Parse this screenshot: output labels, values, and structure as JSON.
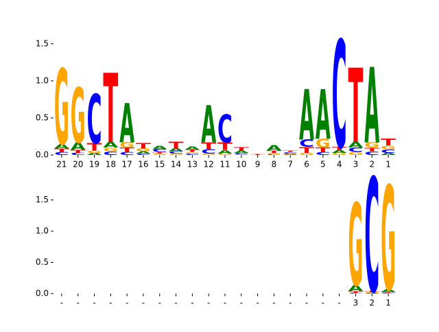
{
  "chart_data": [
    {
      "type": "logo",
      "categories": [
        "21",
        "20",
        "19",
        "18",
        "17",
        "16",
        "15",
        "14",
        "13",
        "12",
        "11",
        "10",
        "9",
        "8",
        "7",
        "6",
        "5",
        "4",
        "3",
        "2",
        "1"
      ],
      "series": [
        {
          "name": "A",
          "color": "#008000",
          "values": [
            0.06,
            0.1,
            0.03,
            0.08,
            0.53,
            0.03,
            0.05,
            0.04,
            0.05,
            0.5,
            0.05,
            0.03,
            0,
            0.07,
            0.01,
            0.68,
            0.67,
            0.04,
            0.08,
            1.02,
            0.03
          ]
        },
        {
          "name": "C",
          "color": "#0000ff",
          "values": [
            0.04,
            0.03,
            0.66,
            0.05,
            0.04,
            0.02,
            0.04,
            0.03,
            0.02,
            0.06,
            0.38,
            0.02,
            0,
            0.01,
            0.02,
            0.1,
            0.04,
            1.45,
            0.06,
            0.05,
            0.05
          ]
        },
        {
          "name": "G",
          "color": "#ffa500",
          "values": [
            1.02,
            0.74,
            0.03,
            0.05,
            0.07,
            0.04,
            0.02,
            0.02,
            0.02,
            0.02,
            0.02,
            0.01,
            0,
            0.02,
            0.01,
            0.03,
            0.12,
            0.03,
            0.04,
            0.07,
            0.05
          ]
        },
        {
          "name": "T",
          "color": "#ff0000",
          "values": [
            0.05,
            0.04,
            0.1,
            0.93,
            0.06,
            0.07,
            0.02,
            0.09,
            0.03,
            0.09,
            0.1,
            0.05,
            0.01,
            0.03,
            0.02,
            0.08,
            0.06,
            0.04,
            1.0,
            0.05,
            0.09
          ]
        }
      ],
      "ylim": [
        0,
        1.6
      ],
      "yticks": [
        {
          "value": 0,
          "label": "0.0"
        },
        {
          "value": 0.5,
          "label": "0.5"
        },
        {
          "value": 1,
          "label": "1.0"
        },
        {
          "value": 1.5,
          "label": "1.5"
        }
      ]
    },
    {
      "type": "logo",
      "categories": [
        "-",
        "-",
        "-",
        "-",
        "-",
        "-",
        "-",
        "-",
        "-",
        "-",
        "-",
        "-",
        "-",
        "-",
        "-",
        "-",
        "-",
        "-",
        "3",
        "2",
        "1"
      ],
      "series": [
        {
          "name": "A",
          "color": "#008000",
          "values": [
            0,
            0,
            0,
            0,
            0,
            0,
            0,
            0,
            0,
            0,
            0,
            0,
            0,
            0,
            0,
            0,
            0,
            0,
            0.1,
            0.01,
            0.05
          ]
        },
        {
          "name": "C",
          "color": "#0000ff",
          "values": [
            0,
            0,
            0,
            0,
            0,
            0,
            0,
            0,
            0,
            0,
            0,
            0,
            0,
            0,
            0,
            0,
            0,
            0,
            0.01,
            1.83,
            0.01
          ]
        },
        {
          "name": "G",
          "color": "#ffa500",
          "values": [
            0,
            0,
            0,
            0,
            0,
            0,
            0,
            0,
            0,
            0,
            0,
            0,
            0,
            0,
            0,
            0,
            0,
            0,
            1.32,
            0.01,
            1.67
          ]
        },
        {
          "name": "T",
          "color": "#ff0000",
          "values": [
            0,
            0,
            0,
            0,
            0,
            0,
            0,
            0,
            0,
            0,
            0,
            0,
            0,
            0,
            0,
            0,
            0,
            0,
            0.03,
            0.02,
            0.01
          ]
        }
      ],
      "ylim": [
        0,
        1.9
      ],
      "yticks": [
        {
          "value": 0,
          "label": "0.0"
        },
        {
          "value": 0.5,
          "label": "0.5"
        },
        {
          "value": 1,
          "label": "1.0"
        },
        {
          "value": 1.5,
          "label": "1.5"
        }
      ]
    }
  ]
}
